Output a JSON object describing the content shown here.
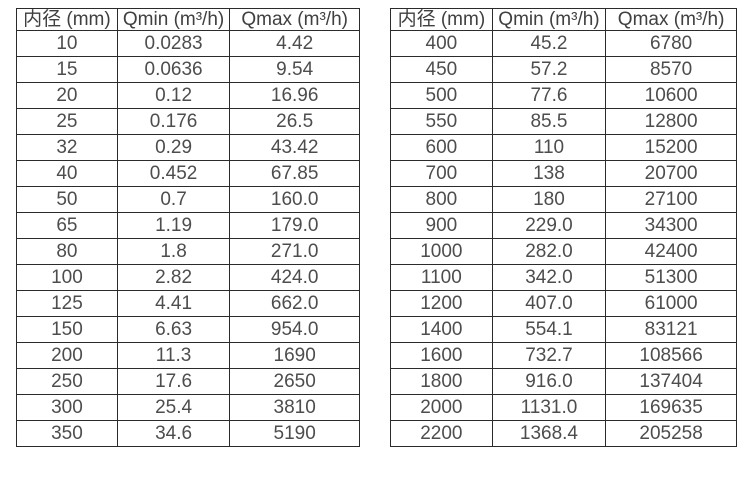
{
  "page": {
    "background": "#ffffff",
    "border_color": "#2b2b2b",
    "header_text_color": "#404040",
    "cell_text_color": "#4d4d4d"
  },
  "tables": [
    {
      "name": "flow-table-small-diameters",
      "headers": [
        "内径 (mm)",
        "Qmin (m³/h)",
        "Qmax (m³/h)"
      ],
      "rows": [
        [
          "10",
          "0.0283",
          "4.42"
        ],
        [
          "15",
          "0.0636",
          "9.54"
        ],
        [
          "20",
          "0.12",
          "16.96"
        ],
        [
          "25",
          "0.176",
          "26.5"
        ],
        [
          "32",
          "0.29",
          "43.42"
        ],
        [
          "40",
          "0.452",
          "67.85"
        ],
        [
          "50",
          "0.7",
          "160.0"
        ],
        [
          "65",
          "1.19",
          "179.0"
        ],
        [
          "80",
          "1.8",
          "271.0"
        ],
        [
          "100",
          "2.82",
          "424.0"
        ],
        [
          "125",
          "4.41",
          "662.0"
        ],
        [
          "150",
          "6.63",
          "954.0"
        ],
        [
          "200",
          "11.3",
          "1690"
        ],
        [
          "250",
          "17.6",
          "2650"
        ],
        [
          "300",
          "25.4",
          "3810"
        ],
        [
          "350",
          "34.6",
          "5190"
        ]
      ]
    },
    {
      "name": "flow-table-large-diameters",
      "headers": [
        "内径 (mm)",
        "Qmin (m³/h)",
        "Qmax (m³/h)"
      ],
      "rows": [
        [
          "400",
          "45.2",
          "6780"
        ],
        [
          "450",
          "57.2",
          "8570"
        ],
        [
          "500",
          "77.6",
          "10600"
        ],
        [
          "550",
          "85.5",
          "12800"
        ],
        [
          "600",
          "110",
          "15200"
        ],
        [
          "700",
          "138",
          "20700"
        ],
        [
          "800",
          "180",
          "27100"
        ],
        [
          "900",
          "229.0",
          "34300"
        ],
        [
          "1000",
          "282.0",
          "42400"
        ],
        [
          "1100",
          "342.0",
          "51300"
        ],
        [
          "1200",
          "407.0",
          "61000"
        ],
        [
          "1400",
          "554.1",
          "83121"
        ],
        [
          "1600",
          "732.7",
          "108566"
        ],
        [
          "1800",
          "916.0",
          "137404"
        ],
        [
          "2000",
          "1131.0",
          "169635"
        ],
        [
          "2200",
          "1368.4",
          "205258"
        ]
      ]
    }
  ]
}
